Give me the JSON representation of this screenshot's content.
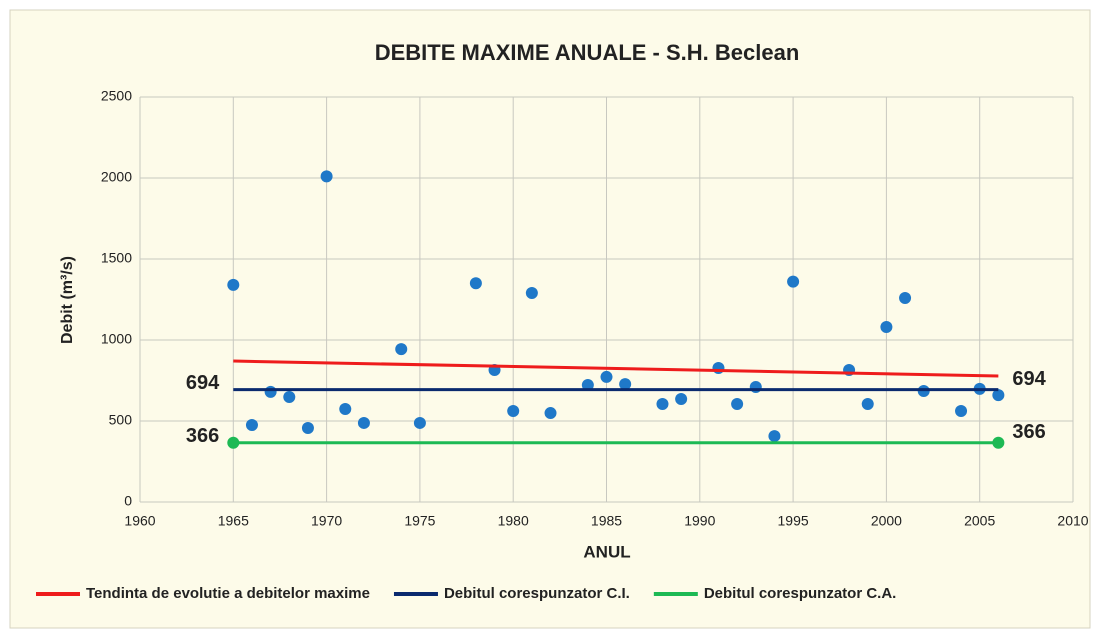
{
  "chart_data": {
    "type": "scatter",
    "title": "DEBITE MAXIME ANUALE  - S.H. Beclean",
    "xlabel": "ANUL",
    "ylabel": "Debit (m³/s)",
    "xlim": [
      1960,
      2010
    ],
    "xticks": [
      1960,
      1965,
      1970,
      1975,
      1980,
      1985,
      1990,
      1995,
      2000,
      2005,
      2010
    ],
    "ylim": [
      0,
      2500
    ],
    "yticks": [
      0,
      500,
      1000,
      1500,
      2000,
      2500
    ],
    "grid": true,
    "legend": "bottom",
    "series": [
      {
        "type": "scatter",
        "color": "#1f78c8",
        "x": [
          1965,
          1966,
          1967,
          1968,
          1969,
          1970,
          1971,
          1972,
          1974,
          1975,
          1978,
          1979,
          1980,
          1981,
          1982,
          1984,
          1985,
          1986,
          1988,
          1989,
          1991,
          1992,
          1993,
          1994,
          1995,
          1998,
          1999,
          2000,
          2001,
          2002,
          2004,
          2005,
          2006
        ],
        "values": [
          1340,
          475,
          680,
          648,
          457,
          2010,
          574,
          488,
          944,
          488,
          1350,
          815,
          562,
          1290,
          549,
          722,
          772,
          728,
          605,
          636,
          827,
          605,
          710,
          407,
          1360,
          815,
          605,
          1080,
          1259,
          685,
          562,
          698,
          660
        ]
      },
      {
        "type": "line",
        "name": "Tendinta de evolutie a debitelor maxime",
        "color": "#ee1c1c",
        "x": [
          1965,
          2006
        ],
        "values": [
          870,
          778
        ]
      },
      {
        "type": "line",
        "name": "Debitul corespunzator C.I.",
        "color": "#0a2a6e",
        "x": [
          1965,
          2006
        ],
        "values": [
          694,
          694
        ],
        "labels": true
      },
      {
        "type": "line",
        "name": "Debitul corespunzator C.A.",
        "color": "#1db954",
        "x": [
          1965,
          2006
        ],
        "values": [
          366,
          366
        ],
        "labels": true,
        "markers": true
      }
    ]
  }
}
